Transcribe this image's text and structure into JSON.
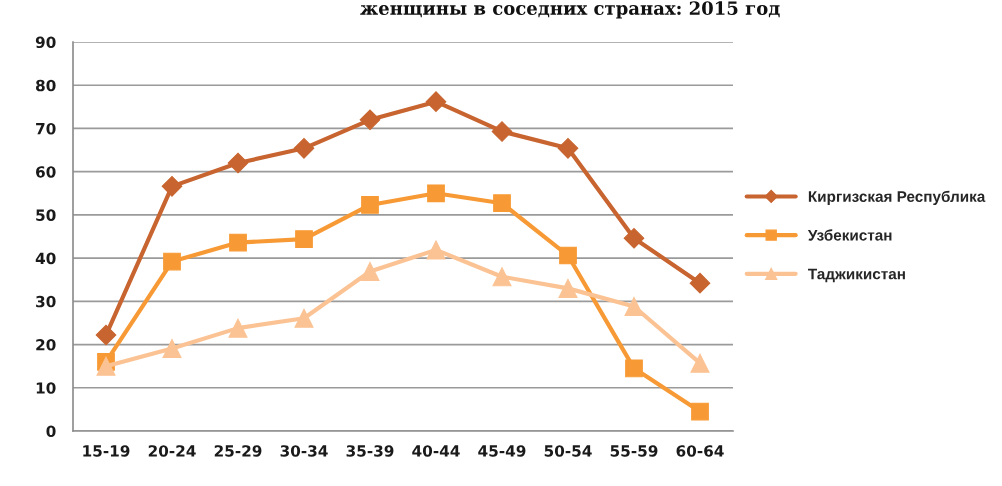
{
  "chart_data": {
    "type": "line",
    "title": "женщины в соседних странах: 2015 год",
    "categories": [
      "15-19",
      "20-24",
      "25-29",
      "30-34",
      "35-39",
      "40-44",
      "45-49",
      "50-54",
      "55-59",
      "60-64"
    ],
    "series": [
      {
        "name": "Киргизская Республика",
        "color": "#c8642f",
        "marker": "diamond",
        "values": [
          22.2,
          56.6,
          62.0,
          65.4,
          72.0,
          76.2,
          69.3,
          65.4,
          44.6,
          34.2
        ]
      },
      {
        "name": "Узбекистан",
        "color": "#f79a35",
        "marker": "square",
        "values": [
          16.0,
          39.2,
          43.6,
          44.4,
          52.3,
          55.0,
          52.7,
          40.6,
          14.5,
          4.5
        ]
      },
      {
        "name": "Таджикистан",
        "color": "#fbc394",
        "marker": "triangle",
        "values": [
          15.0,
          19.1,
          23.8,
          26.1,
          36.9,
          41.9,
          35.7,
          33.0,
          28.8,
          15.7
        ]
      }
    ],
    "ylim": [
      0,
      90
    ],
    "yticks": [
      0,
      10,
      20,
      30,
      40,
      50,
      60,
      70,
      80,
      90
    ],
    "grid": "y",
    "legend": "right",
    "line_style": "solid"
  }
}
